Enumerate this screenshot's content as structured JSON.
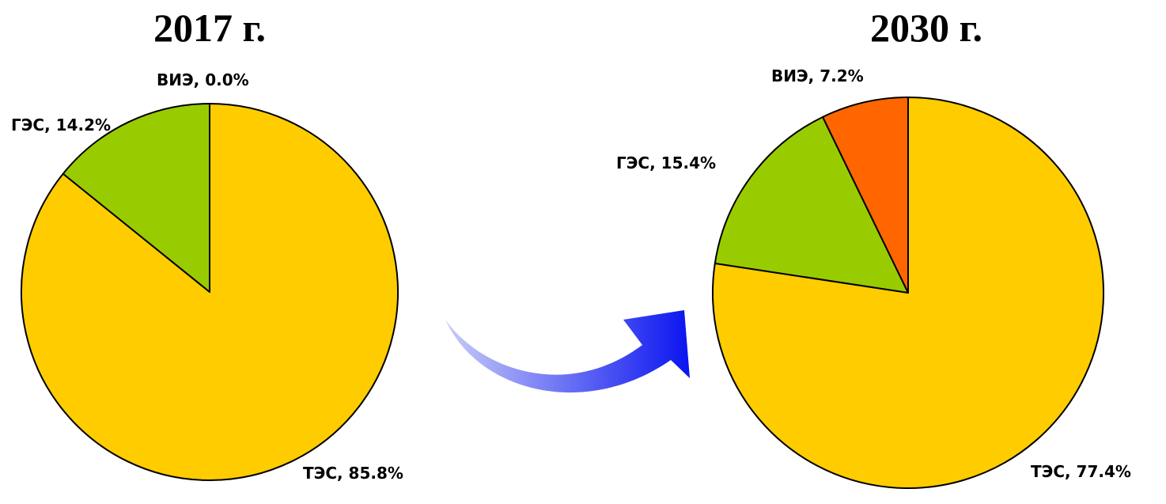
{
  "chart_data": [
    {
      "type": "pie",
      "title": "2017 г.",
      "slices": [
        {
          "label": "ТЭС, 85.8%",
          "value": 85.8,
          "color": "#FFCC00"
        },
        {
          "label": "ГЭС, 14.2%",
          "value": 14.2,
          "color": "#99CC00"
        },
        {
          "label": "ВИЭ, 0.0%",
          "value": 0.0,
          "color": "#FF6600"
        }
      ]
    },
    {
      "type": "pie",
      "title": "2030 г.",
      "slices": [
        {
          "label": "ТЭС, 77.4%",
          "value": 77.4,
          "color": "#FFCC00"
        },
        {
          "label": "ГЭС, 15.4%",
          "value": 15.4,
          "color": "#99CC00"
        },
        {
          "label": "ВИЭ, 7.2%",
          "value": 7.2,
          "color": "#FF6600"
        }
      ]
    }
  ],
  "arrow": {
    "icon": "curved-arrow-right-icon",
    "color_start": "#C8CCF8",
    "color_end": "#0A14F0"
  }
}
